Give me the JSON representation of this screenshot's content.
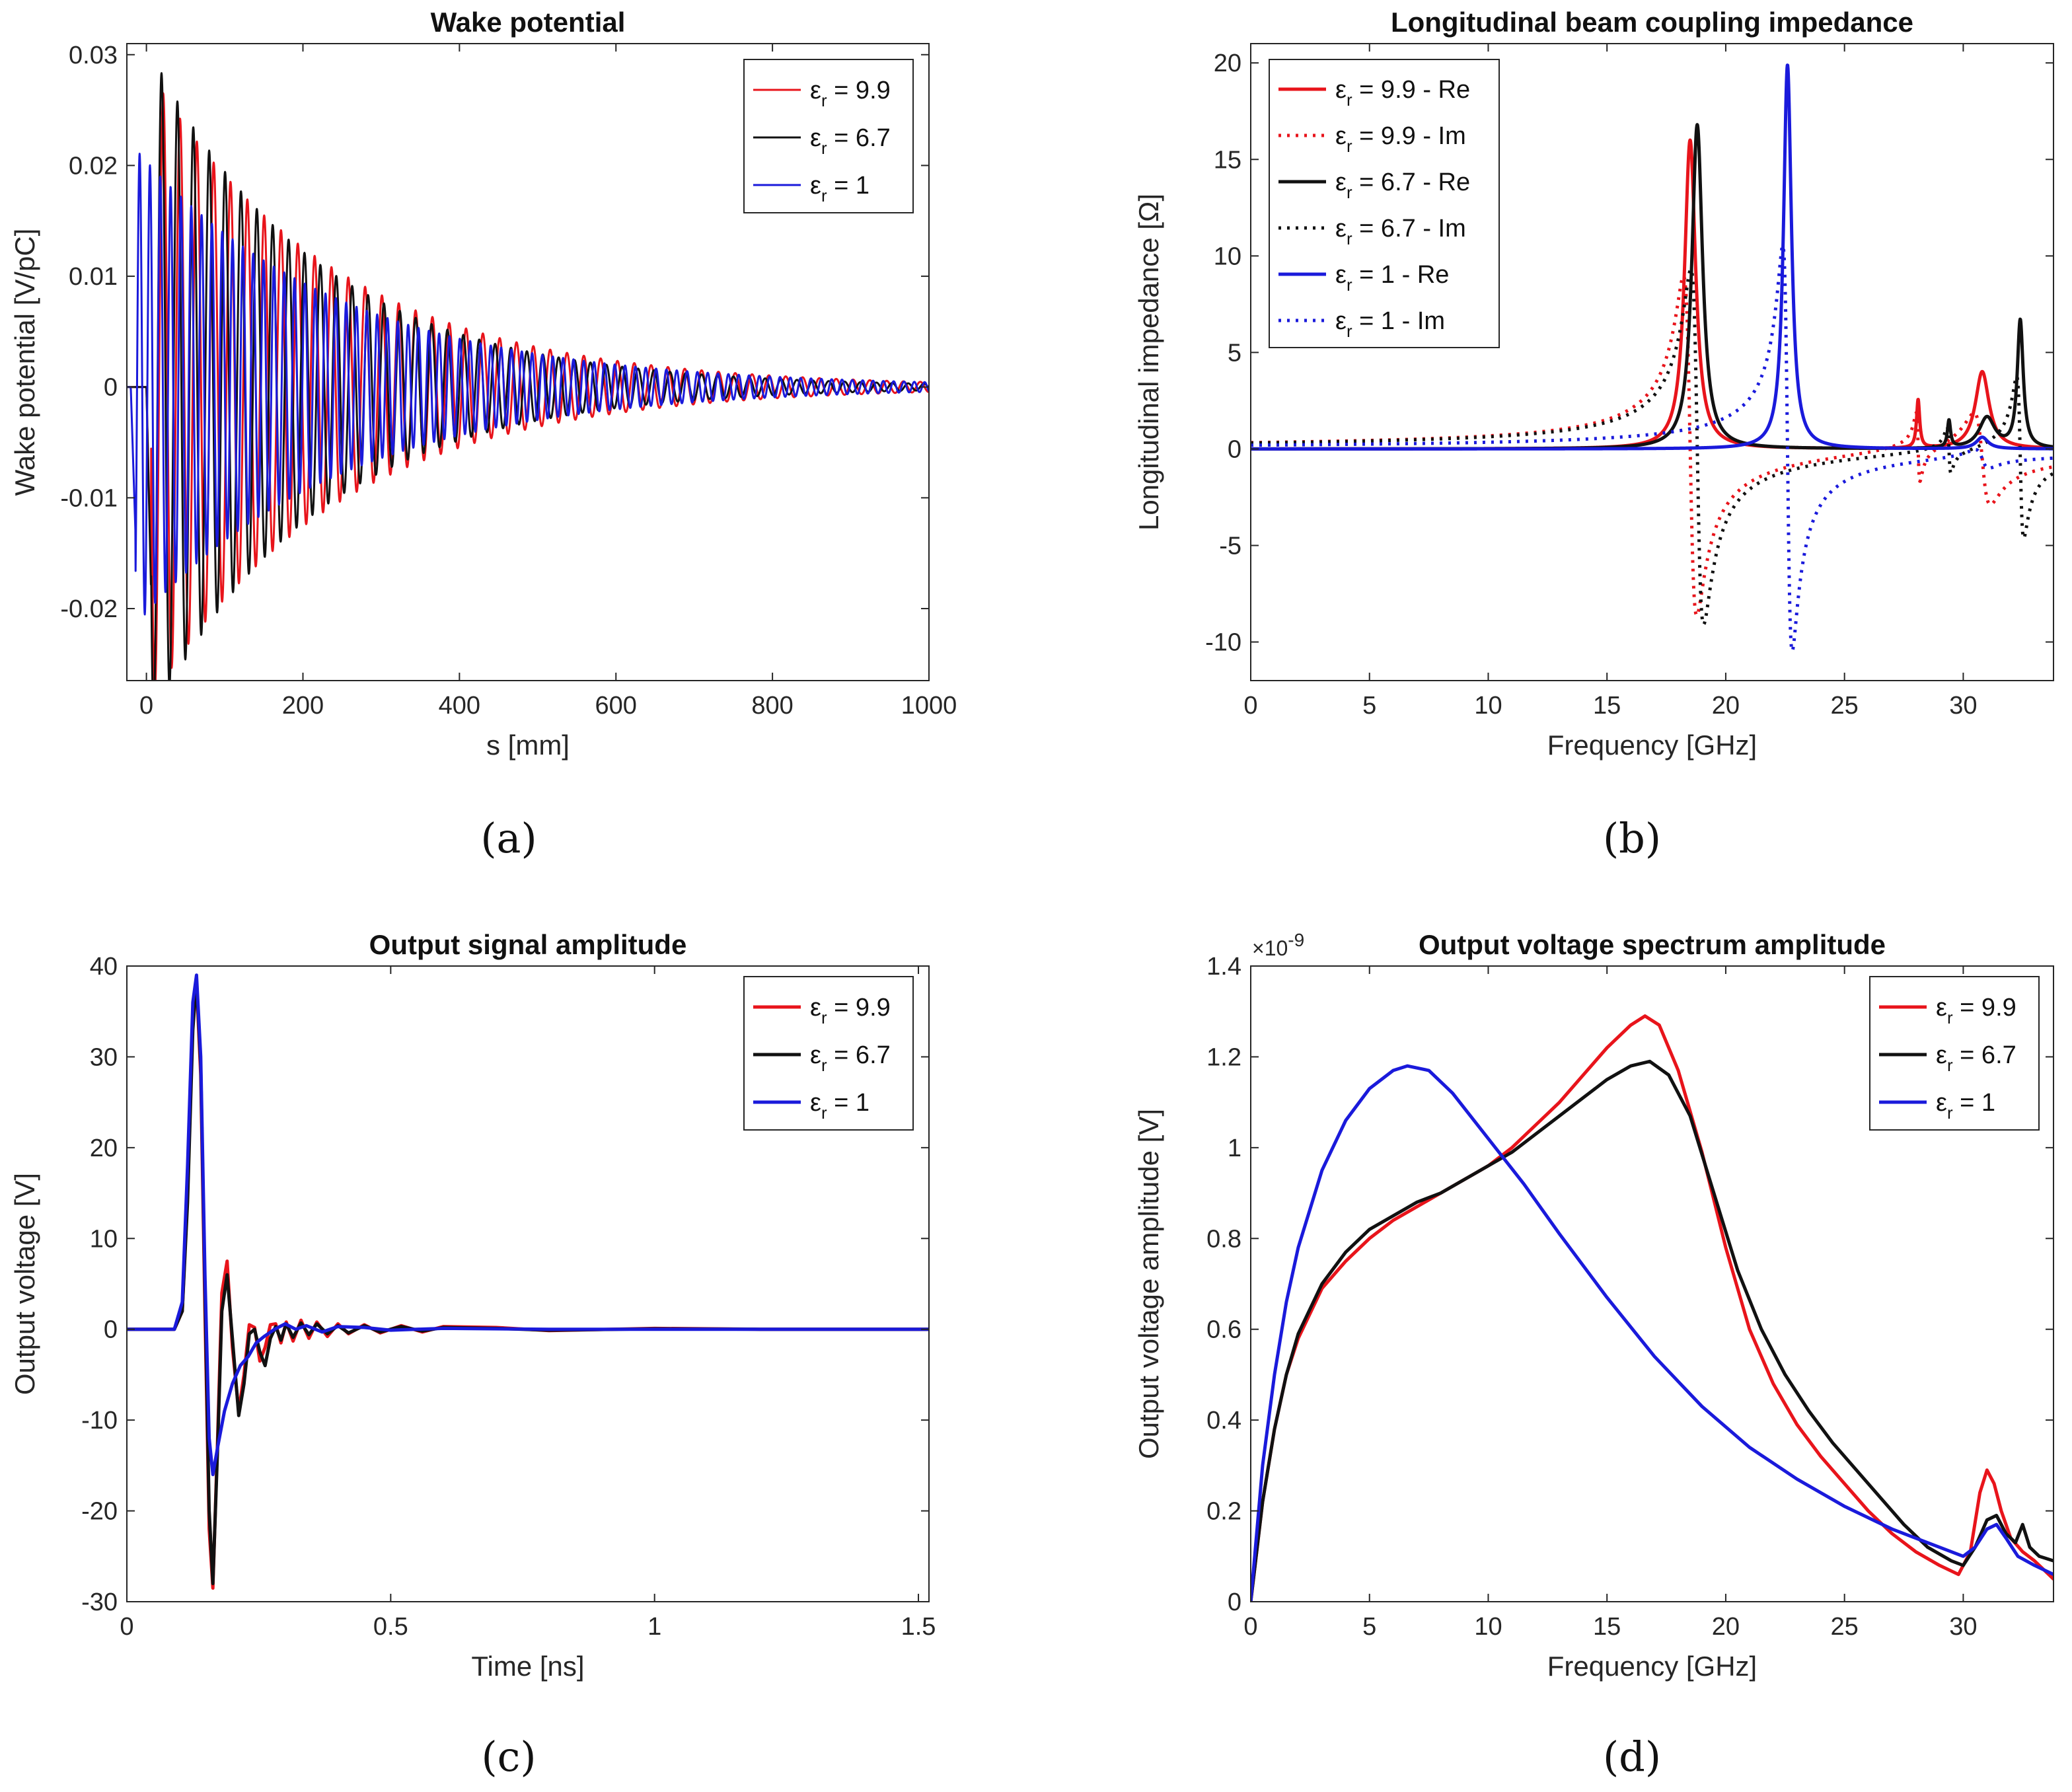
{
  "colors": {
    "red": "#e8141b",
    "black": "#111111",
    "blue": "#1a1adb"
  },
  "chart_data": [
    {
      "id": "a",
      "panel_label": "(a)",
      "type": "line",
      "title": "Wake potential",
      "xlabel": "s [mm]",
      "ylabel": "Wake potential [V/pC]",
      "xlim": [
        -25,
        1000
      ],
      "ylim": [
        -0.0265,
        0.031
      ],
      "xticks": [
        0,
        200,
        400,
        600,
        800,
        1000
      ],
      "xtick_labels": [
        "0",
        "200",
        "400",
        "600",
        "800",
        "1000"
      ],
      "yticks": [
        -0.02,
        -0.01,
        0,
        0.01,
        0.02,
        0.03
      ],
      "ytick_labels": [
        "-0.02",
        "-0.01",
        "0",
        "0.01",
        "0.02",
        "0.03"
      ],
      "legend_position": "top-right",
      "legend": [
        {
          "pre": "ε",
          "sub": "r",
          "post": " = 9.9",
          "color": "red",
          "dash": "solid",
          "width": 3
        },
        {
          "pre": "ε",
          "sub": "r",
          "post": " = 6.7",
          "color": "black",
          "dash": "solid",
          "width": 3
        },
        {
          "pre": "ε",
          "sub": "r",
          "post": " = 1",
          "color": "blue",
          "dash": "solid",
          "width": 3
        }
      ],
      "series": [
        {
          "name": "εr = 9.9",
          "color": "red",
          "dash": "solid",
          "width": 3,
          "kind": "damped",
          "start": 0,
          "amplitude": 0.029,
          "tau": 240,
          "period": 21.5,
          "phase": 0,
          "onset": 0
        },
        {
          "name": "εr = 6.7",
          "color": "black",
          "dash": "solid",
          "width": 3,
          "kind": "damped",
          "start": 0,
          "amplitude": 0.031,
          "tau": 215,
          "period": 20.3,
          "phase": 0.3,
          "onset": 0
        },
        {
          "name": "εr = 1",
          "color": "blue",
          "dash": "solid",
          "width": 3,
          "kind": "damped",
          "start": 0,
          "amplitude": 0.022,
          "tau": 260,
          "period": 13.2,
          "phase": 0.9,
          "onset": -20
        }
      ]
    },
    {
      "id": "b",
      "panel_label": "(b)",
      "type": "line",
      "title": "Longitudinal beam coupling impedance",
      "xlabel": "Frequency [GHz]",
      "ylabel": "Longitudinal impedance [Ω]",
      "xlim": [
        0,
        33.8
      ],
      "ylim": [
        -12,
        21
      ],
      "xticks": [
        0,
        5,
        10,
        15,
        20,
        25,
        30
      ],
      "xtick_labels": [
        "0",
        "5",
        "10",
        "15",
        "20",
        "25",
        "30"
      ],
      "yticks": [
        -10,
        -5,
        0,
        5,
        10,
        15,
        20
      ],
      "ytick_labels": [
        "-10",
        "-5",
        "0",
        "5",
        "10",
        "15",
        "20"
      ],
      "legend_position": "top-left",
      "legend": [
        {
          "pre": "ε",
          "sub": "r",
          "post": " = 9.9 - Re",
          "color": "red",
          "dash": "solid",
          "width": 5
        },
        {
          "pre": "ε",
          "sub": "r",
          "post": " = 9.9 - Im",
          "color": "red",
          "dash": "dot",
          "width": 5
        },
        {
          "pre": "ε",
          "sub": "r",
          "post": " = 6.7 - Re",
          "color": "black",
          "dash": "solid",
          "width": 5
        },
        {
          "pre": "ε",
          "sub": "r",
          "post": " = 6.7 - Im",
          "color": "black",
          "dash": "dot",
          "width": 5
        },
        {
          "pre": "ε",
          "sub": "r",
          "post": " = 1 - Re",
          "color": "blue",
          "dash": "solid",
          "width": 5
        },
        {
          "pre": "ε",
          "sub": "r",
          "post": " = 1 - Im",
          "color": "blue",
          "dash": "dot",
          "width": 5
        }
      ],
      "series": [
        {
          "name": "εr = 9.9 - Re",
          "color": "red",
          "dash": "solid",
          "width": 5,
          "kind": "resonance_re",
          "resonances": [
            {
              "f": 18.5,
              "peak": 16.0,
              "gamma": 0.28
            },
            {
              "f": 28.1,
              "peak": 2.5,
              "gamma": 0.08
            },
            {
              "f": 30.8,
              "peak": 4.0,
              "gamma": 0.35
            }
          ]
        },
        {
          "name": "εr = 9.9 - Im",
          "color": "red",
          "dash": "dot",
          "width": 5,
          "kind": "resonance_im",
          "resonances": [
            {
              "f": 18.5,
              "peak": 8.8,
              "gamma": 0.28
            },
            {
              "f": 28.1,
              "peak": 1.8,
              "gamma": 0.08
            },
            {
              "f": 30.8,
              "peak": 2.4,
              "gamma": 0.35
            }
          ]
        },
        {
          "name": "εr = 6.7 - Re",
          "color": "black",
          "dash": "solid",
          "width": 5,
          "kind": "resonance_re",
          "resonances": [
            {
              "f": 18.8,
              "peak": 16.8,
              "gamma": 0.27
            },
            {
              "f": 29.4,
              "peak": 1.4,
              "gamma": 0.08
            },
            {
              "f": 31.0,
              "peak": 1.6,
              "gamma": 0.4
            },
            {
              "f": 32.4,
              "peak": 6.6,
              "gamma": 0.15
            }
          ]
        },
        {
          "name": "εr = 6.7 - Im",
          "color": "black",
          "dash": "dot",
          "width": 5,
          "kind": "resonance_im",
          "resonances": [
            {
              "f": 18.8,
              "peak": 9.2,
              "gamma": 0.27
            },
            {
              "f": 29.4,
              "peak": 1.2,
              "gamma": 0.08
            },
            {
              "f": 32.4,
              "peak": 4.2,
              "gamma": 0.15
            }
          ]
        },
        {
          "name": "εr = 1 - Re",
          "color": "blue",
          "dash": "solid",
          "width": 5,
          "kind": "resonance_re",
          "resonances": [
            {
              "f": 22.6,
              "peak": 19.9,
              "gamma": 0.2
            },
            {
              "f": 30.8,
              "peak": 0.6,
              "gamma": 0.3
            }
          ]
        },
        {
          "name": "εr = 1 - Im",
          "color": "blue",
          "dash": "dot",
          "width": 5,
          "kind": "resonance_im",
          "resonances": [
            {
              "f": 22.6,
              "peak": 10.5,
              "gamma": 0.2
            },
            {
              "f": 30.8,
              "peak": 0.5,
              "gamma": 0.3
            }
          ]
        }
      ]
    },
    {
      "id": "c",
      "panel_label": "(c)",
      "type": "line",
      "title": "Output signal amplitude",
      "xlabel": "Time [ns]",
      "ylabel": "Output voltage [V]",
      "xlim": [
        0,
        1.52
      ],
      "ylim": [
        -30,
        40
      ],
      "xticks": [
        0,
        0.5,
        1,
        1.5
      ],
      "xtick_labels": [
        "0",
        "0.5",
        "1",
        "1.5"
      ],
      "yticks": [
        -30,
        -20,
        -10,
        0,
        10,
        20,
        30,
        40
      ],
      "ytick_labels": [
        "-30",
        "-20",
        "-10",
        "0",
        "10",
        "20",
        "30",
        "40"
      ],
      "legend_position": "top-right",
      "legend": [
        {
          "pre": "ε",
          "sub": "r",
          "post": " = 9.9",
          "color": "red",
          "dash": "solid",
          "width": 5
        },
        {
          "pre": "ε",
          "sub": "r",
          "post": " = 6.7",
          "color": "black",
          "dash": "solid",
          "width": 5
        },
        {
          "pre": "ε",
          "sub": "r",
          "post": " = 1",
          "color": "blue",
          "dash": "solid",
          "width": 5
        }
      ],
      "series": [
        {
          "name": "εr = 9.9",
          "color": "red",
          "dash": "solid",
          "width": 5,
          "kind": "points",
          "x": [
            0,
            0.09,
            0.105,
            0.115,
            0.125,
            0.132,
            0.14,
            0.148,
            0.156,
            0.163,
            0.172,
            0.18,
            0.19,
            0.2,
            0.212,
            0.222,
            0.232,
            0.242,
            0.252,
            0.262,
            0.272,
            0.282,
            0.292,
            0.302,
            0.315,
            0.33,
            0.345,
            0.36,
            0.38,
            0.4,
            0.42,
            0.45,
            0.48,
            0.52,
            0.56,
            0.6,
            0.7,
            0.8,
            1.0,
            1.2,
            1.52
          ],
          "y": [
            0,
            0,
            2,
            15,
            34,
            38,
            28,
            2,
            -22,
            -28.5,
            -12,
            4,
            7.5,
            -2,
            -9,
            -5,
            0.5,
            0.2,
            -3.5,
            -2,
            0.5,
            0.6,
            -1.5,
            0.8,
            -1.3,
            1.0,
            -1.0,
            0.8,
            -0.8,
            0.6,
            -0.5,
            0.5,
            -0.4,
            0.4,
            -0.3,
            0.3,
            0.2,
            -0.15,
            0.1,
            0,
            0
          ]
        },
        {
          "name": "εr = 6.7",
          "color": "black",
          "dash": "solid",
          "width": 5,
          "kind": "points",
          "x": [
            0,
            0.09,
            0.105,
            0.115,
            0.125,
            0.132,
            0.14,
            0.148,
            0.156,
            0.163,
            0.172,
            0.18,
            0.19,
            0.2,
            0.212,
            0.222,
            0.232,
            0.242,
            0.252,
            0.262,
            0.272,
            0.282,
            0.292,
            0.302,
            0.315,
            0.33,
            0.345,
            0.36,
            0.38,
            0.4,
            0.42,
            0.45,
            0.48,
            0.52,
            0.56,
            0.6,
            0.7,
            0.8,
            1.0,
            1.2,
            1.52
          ],
          "y": [
            0,
            0,
            2,
            14,
            33,
            38.5,
            29,
            4,
            -20,
            -28,
            -13,
            2,
            6,
            -1,
            -9.5,
            -6,
            -0.5,
            0,
            -2.5,
            -4,
            -1,
            0.3,
            -1.2,
            0.6,
            -0.9,
            0.7,
            -0.6,
            0.6,
            -0.5,
            0.4,
            -0.4,
            0.4,
            -0.3,
            0.3,
            -0.2,
            0.2,
            0.1,
            -0.1,
            0.05,
            0,
            0
          ]
        },
        {
          "name": "εr = 1",
          "color": "blue",
          "dash": "solid",
          "width": 5,
          "kind": "points",
          "x": [
            0,
            0.09,
            0.105,
            0.115,
            0.125,
            0.132,
            0.14,
            0.148,
            0.156,
            0.163,
            0.172,
            0.185,
            0.2,
            0.215,
            0.23,
            0.245,
            0.26,
            0.28,
            0.3,
            0.32,
            0.34,
            0.37,
            0.4,
            0.45,
            0.5,
            0.6,
            0.8,
            1.0,
            1.52
          ],
          "y": [
            0,
            0,
            3,
            18,
            36,
            39,
            30,
            6,
            -12,
            -16,
            -13,
            -9,
            -6,
            -4,
            -3,
            -1.5,
            -0.8,
            0,
            0.6,
            0,
            0.4,
            -0.3,
            0.3,
            0.2,
            -0.1,
            0.1,
            0,
            0,
            0
          ]
        }
      ]
    },
    {
      "id": "d",
      "panel_label": "(d)",
      "type": "line",
      "title": "Output voltage spectrum amplitude",
      "xlabel": "Frequency [GHz]",
      "ylabel": "Output voltage amplitude [V]",
      "exponent_base": "×10",
      "exponent_power": "-9",
      "xlim": [
        0,
        33.8
      ],
      "ylim": [
        0,
        1.4
      ],
      "xticks": [
        0,
        5,
        10,
        15,
        20,
        25,
        30
      ],
      "xtick_labels": [
        "0",
        "5",
        "10",
        "15",
        "20",
        "25",
        "30"
      ],
      "yticks": [
        0,
        0.2,
        0.4,
        0.6,
        0.8,
        1.0,
        1.2,
        1.4
      ],
      "ytick_labels": [
        "0",
        "0.2",
        "0.4",
        "0.6",
        "0.8",
        "1",
        "1.2",
        "1.4"
      ],
      "legend_position": "top-right",
      "legend": [
        {
          "pre": "ε",
          "sub": "r",
          "post": " = 9.9",
          "color": "red",
          "dash": "solid",
          "width": 5
        },
        {
          "pre": "ε",
          "sub": "r",
          "post": " = 6.7",
          "color": "black",
          "dash": "solid",
          "width": 5
        },
        {
          "pre": "ε",
          "sub": "r",
          "post": " = 1",
          "color": "blue",
          "dash": "solid",
          "width": 5
        }
      ],
      "series": [
        {
          "name": "εr = 9.9",
          "color": "red",
          "dash": "solid",
          "width": 5,
          "kind": "points",
          "x": [
            0,
            0.5,
            1,
            1.5,
            2,
            3,
            4,
            5,
            6,
            7,
            8,
            9,
            10,
            11,
            12,
            13,
            14,
            15,
            16,
            16.6,
            17.2,
            18,
            19,
            20,
            21,
            22,
            23,
            24,
            25,
            26,
            27,
            28,
            29,
            29.8,
            30.3,
            30.7,
            31.0,
            31.3,
            31.6,
            32.0,
            32.5,
            33,
            33.8
          ],
          "y": [
            0,
            0.22,
            0.38,
            0.5,
            0.58,
            0.69,
            0.75,
            0.8,
            0.84,
            0.87,
            0.9,
            0.93,
            0.96,
            1.0,
            1.05,
            1.1,
            1.16,
            1.22,
            1.27,
            1.29,
            1.27,
            1.17,
            0.99,
            0.78,
            0.6,
            0.48,
            0.39,
            0.32,
            0.26,
            0.2,
            0.15,
            0.11,
            0.08,
            0.06,
            0.11,
            0.24,
            0.29,
            0.26,
            0.2,
            0.14,
            0.11,
            0.09,
            0.05
          ]
        },
        {
          "name": "εr = 6.7",
          "color": "black",
          "dash": "solid",
          "width": 5,
          "kind": "points",
          "x": [
            0,
            0.5,
            1,
            1.5,
            2,
            3,
            4,
            5,
            6,
            7,
            8,
            9,
            10,
            11,
            12,
            13,
            14,
            15,
            16,
            16.8,
            17.6,
            18.5,
            19.5,
            20.5,
            21.5,
            22.5,
            23.5,
            24.5,
            25.5,
            26.5,
            27.5,
            28.5,
            29.5,
            30,
            30.5,
            31.0,
            31.4,
            31.8,
            32.2,
            32.5,
            32.8,
            33.2,
            33.8
          ],
          "y": [
            0,
            0.22,
            0.38,
            0.5,
            0.59,
            0.7,
            0.77,
            0.82,
            0.85,
            0.88,
            0.9,
            0.93,
            0.96,
            0.99,
            1.03,
            1.07,
            1.11,
            1.15,
            1.18,
            1.19,
            1.16,
            1.07,
            0.9,
            0.73,
            0.6,
            0.5,
            0.42,
            0.35,
            0.29,
            0.23,
            0.17,
            0.12,
            0.09,
            0.08,
            0.12,
            0.18,
            0.19,
            0.15,
            0.13,
            0.17,
            0.12,
            0.1,
            0.09
          ]
        },
        {
          "name": "εr = 1",
          "color": "blue",
          "dash": "solid",
          "width": 5,
          "kind": "points",
          "x": [
            0,
            0.5,
            1,
            1.5,
            2,
            3,
            4,
            5,
            6,
            6.6,
            7.5,
            8.5,
            10,
            11.5,
            13,
            15,
            17,
            19,
            21,
            23,
            25,
            27,
            29,
            30,
            30.5,
            31,
            31.4,
            31.8,
            32.3,
            33,
            33.8
          ],
          "y": [
            0,
            0.3,
            0.5,
            0.66,
            0.78,
            0.95,
            1.06,
            1.13,
            1.17,
            1.18,
            1.17,
            1.12,
            1.02,
            0.92,
            0.81,
            0.67,
            0.54,
            0.43,
            0.34,
            0.27,
            0.21,
            0.16,
            0.12,
            0.1,
            0.12,
            0.16,
            0.17,
            0.14,
            0.1,
            0.08,
            0.06
          ]
        }
      ]
    }
  ]
}
